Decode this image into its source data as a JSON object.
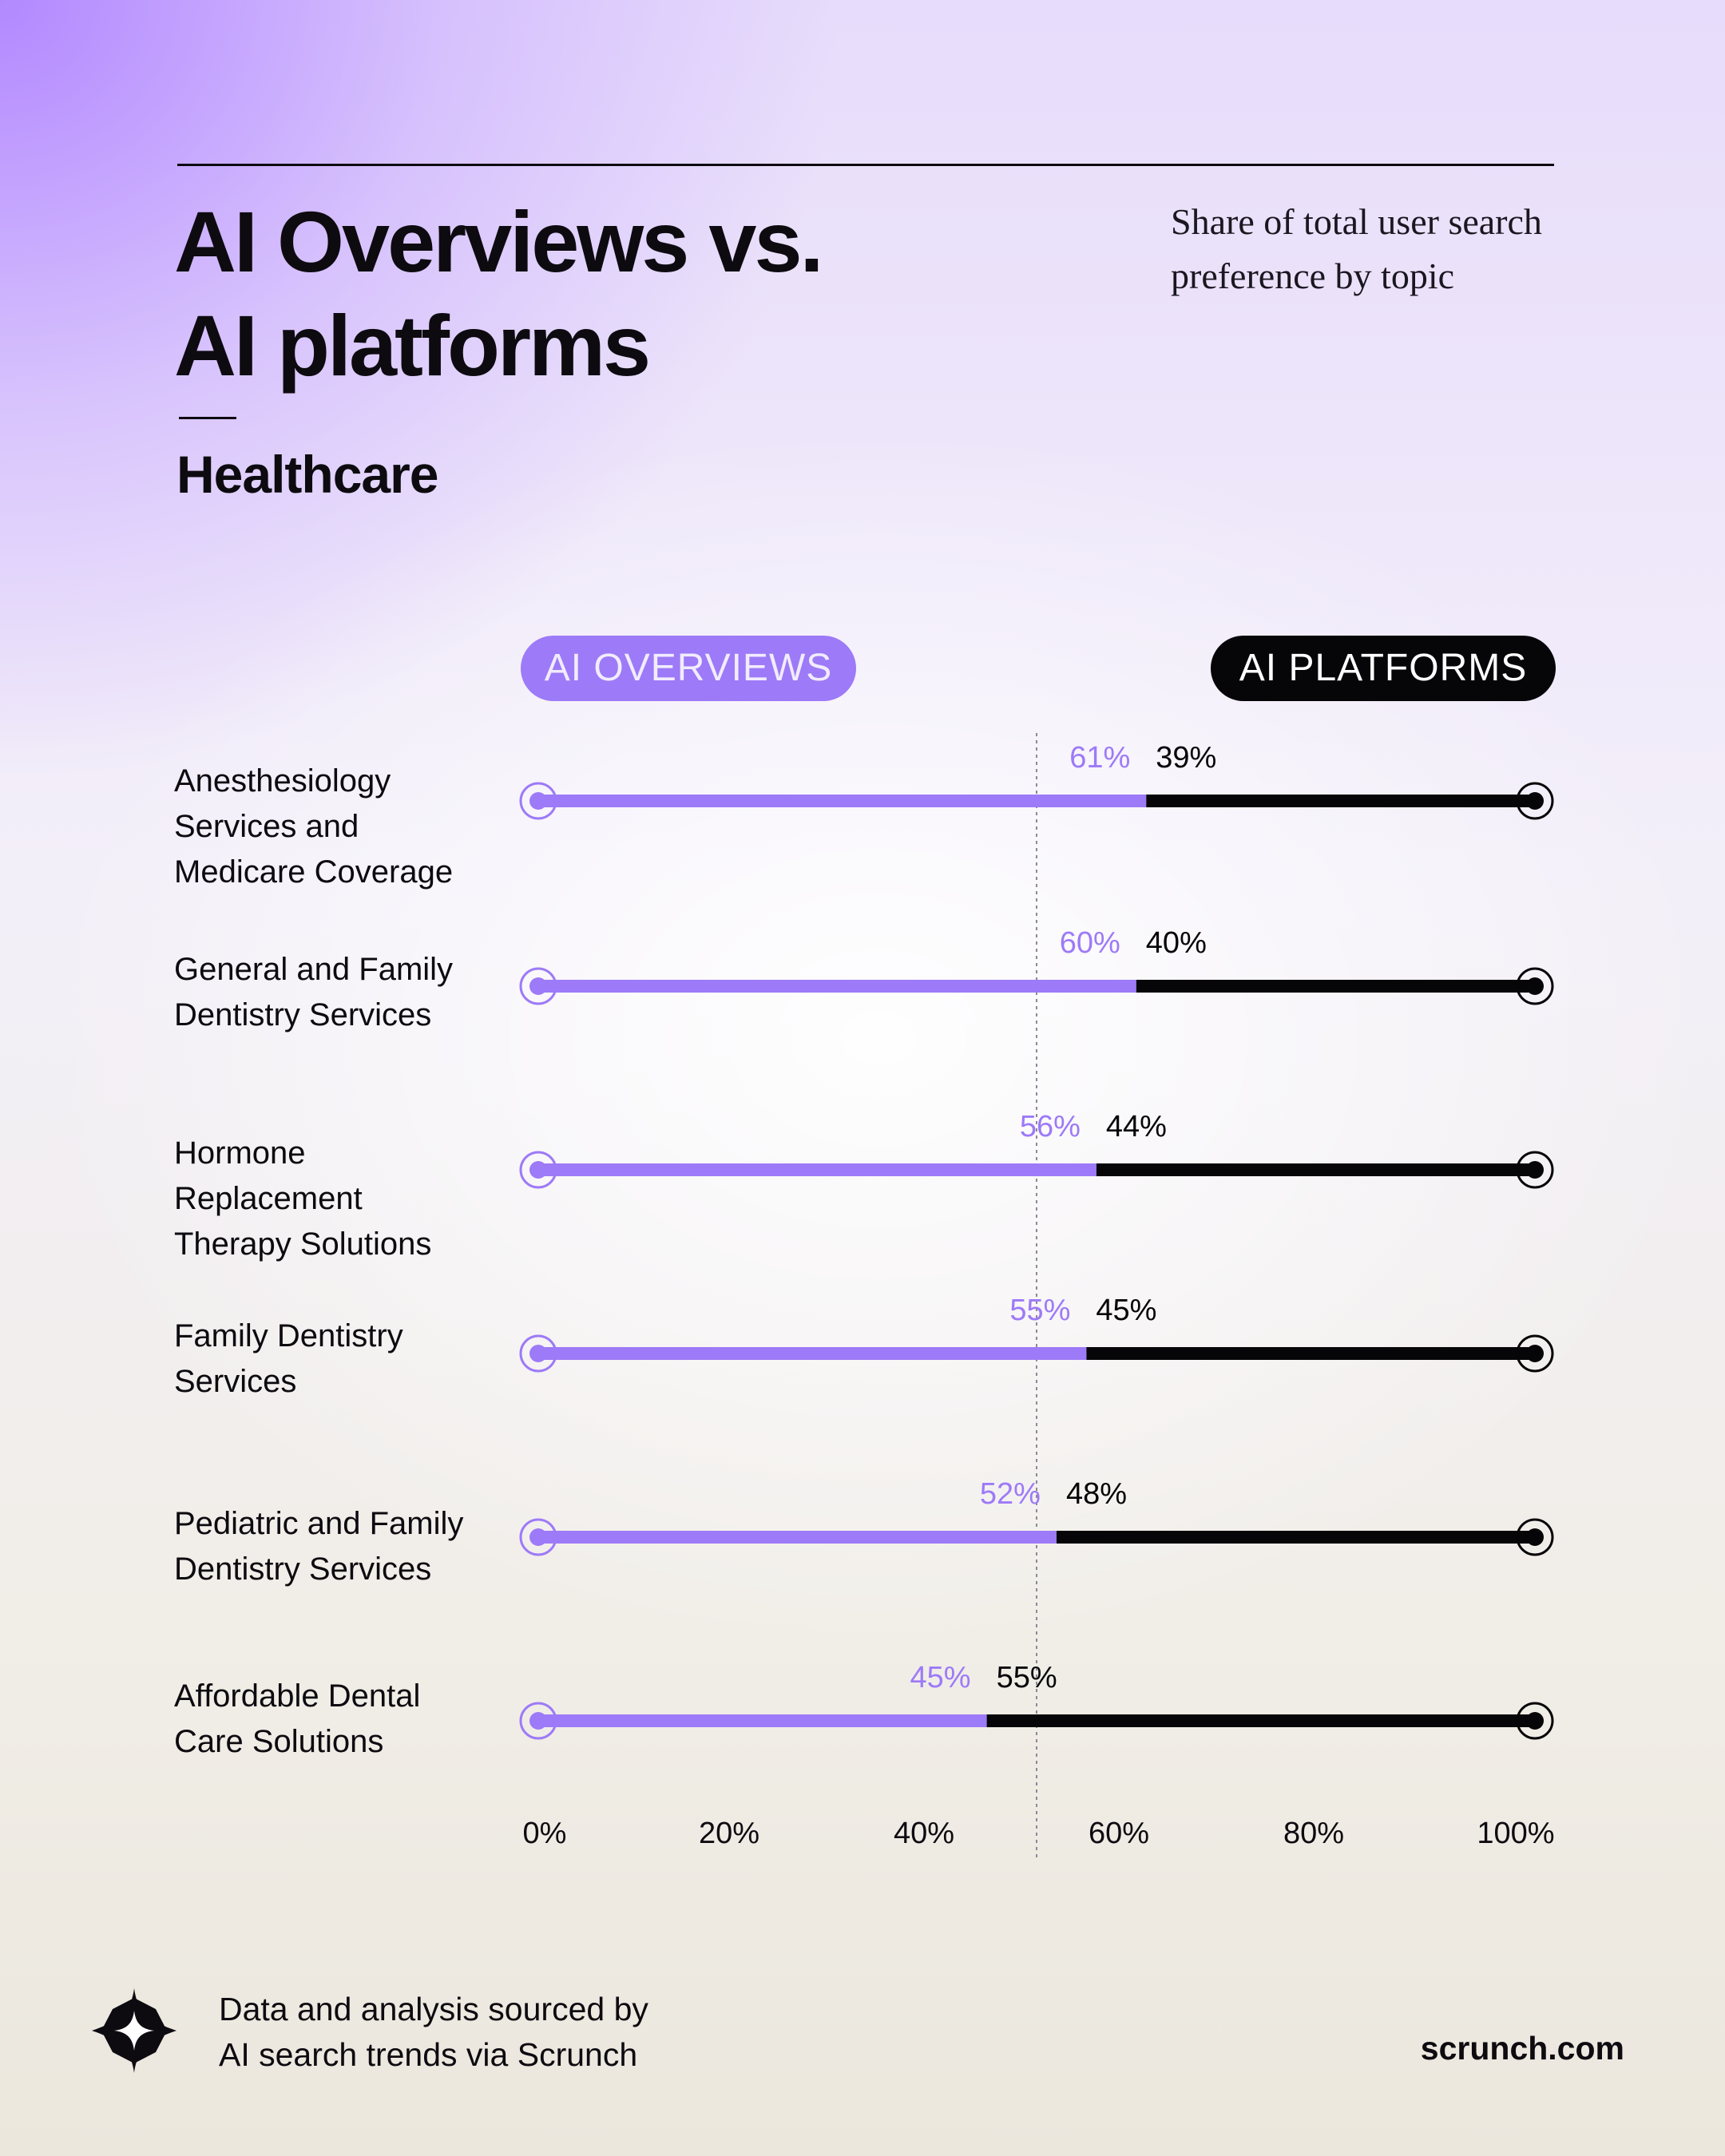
{
  "header": {
    "title_line1": "AI Overviews vs.",
    "title_line2": "AI platforms",
    "subtitle_line1": "Share of total user search",
    "subtitle_line2": "preference by topic",
    "section": "Healthcare"
  },
  "legend": {
    "overviews": "AI OVERVIEWS",
    "platforms": "AI PLATFORMS"
  },
  "footer": {
    "source_line1": "Data and analysis sourced by",
    "source_line2": "AI search trends via Scrunch",
    "site": "scrunch.com"
  },
  "colors": {
    "overviews": "#9d7af7",
    "platforms": "#060507"
  },
  "chart_data": {
    "type": "bar",
    "orientation": "horizontal",
    "stacked": true,
    "categories": [
      "Anesthesiology Services and Medicare Coverage",
      "General and Family Dentistry Services",
      "Hormone Replacement Therapy Solutions",
      "Family Dentistry Services",
      "Pediatric and Family Dentistry Services",
      "Affordable Dental Care Solutions"
    ],
    "category_lines": [
      [
        "Anesthesiology",
        "Services and",
        "Medicare Coverage"
      ],
      [
        "General and Family",
        "Dentistry Services"
      ],
      [
        "Hormone",
        "Replacement",
        "Therapy Solutions"
      ],
      [
        "Family Dentistry",
        "Services"
      ],
      [
        "Pediatric and Family",
        "Dentistry Services"
      ],
      [
        "Affordable Dental",
        "Care Solutions"
      ]
    ],
    "series": [
      {
        "name": "AI OVERVIEWS",
        "values": [
          61,
          60,
          56,
          55,
          52,
          45
        ],
        "labels": [
          "61%",
          "60%",
          "56%",
          "55%",
          "52%",
          "45%"
        ]
      },
      {
        "name": "AI PLATFORMS",
        "values": [
          39,
          40,
          44,
          45,
          48,
          55
        ],
        "labels": [
          "39%",
          "40%",
          "44%",
          "45%",
          "48%",
          "55%"
        ]
      }
    ],
    "xlim": [
      0,
      100
    ],
    "xticks": [
      0,
      20,
      40,
      60,
      80,
      100
    ],
    "xtick_labels": [
      "0%",
      "20%",
      "40%",
      "60%",
      "80%",
      "100%"
    ],
    "reference_line": 50,
    "grid": false
  }
}
